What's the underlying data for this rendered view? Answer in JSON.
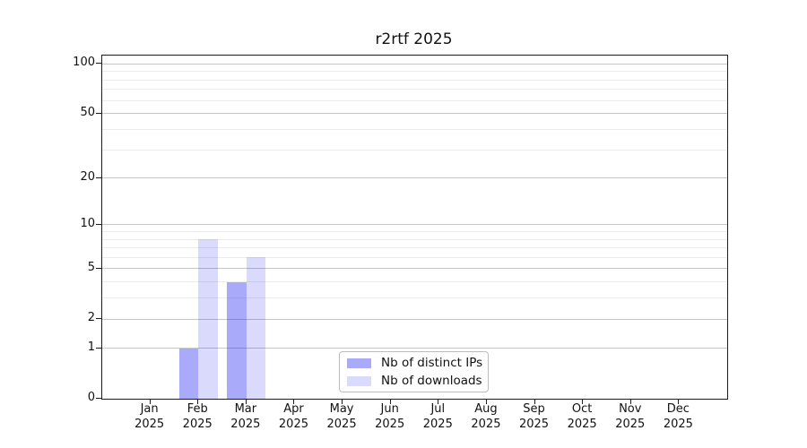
{
  "title": "r2rtf 2025",
  "chart_data": {
    "type": "bar",
    "title": "r2rtf 2025",
    "categories": [
      "Jan",
      "Feb",
      "Mar",
      "Apr",
      "May",
      "Jun",
      "Jul",
      "Aug",
      "Sep",
      "Oct",
      "Nov",
      "Dec"
    ],
    "category_year": "2025",
    "series": [
      {
        "name": "Nb of distinct IPs",
        "base_color": "#0000f0",
        "alpha": 0.335,
        "values": [
          0,
          1,
          4,
          0,
          0,
          0,
          0,
          0,
          0,
          0,
          0,
          0
        ]
      },
      {
        "name": "Nb of downloads",
        "base_color": "#0000f0",
        "alpha": 0.145,
        "values": [
          0,
          8,
          6,
          0,
          0,
          0,
          0,
          0,
          0,
          0,
          0,
          0
        ]
      }
    ],
    "xlabel": "",
    "ylabel": "",
    "y_axis": {
      "scale": "log1p",
      "ylim": [
        0,
        112.5
      ],
      "major_ticks": [
        0,
        1,
        2,
        5,
        10,
        20,
        50,
        100
      ],
      "minor_gridlines": [
        3,
        4,
        6,
        7,
        8,
        9,
        30,
        40,
        60,
        70,
        80,
        90
      ]
    },
    "grid": "on",
    "legend": {
      "position": "lower-center",
      "entries": [
        "Nb of distinct IPs",
        "Nb of downloads"
      ]
    },
    "colors": {
      "grid_major": "#c6c6c6",
      "grid_minor": "#ececec",
      "axis_spine": "#1c1c1c",
      "bar_ips_rendered": "#aaaaf9",
      "bar_downloads_rendered": "#dcdcf9",
      "text": "#111111"
    }
  }
}
